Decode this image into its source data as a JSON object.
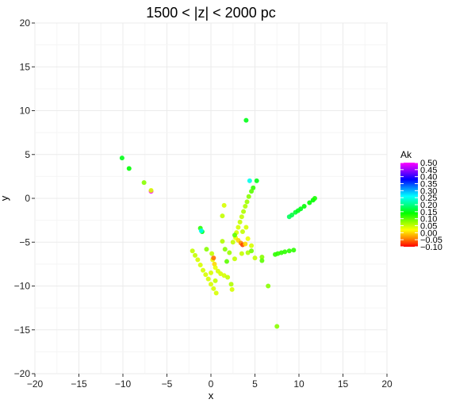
{
  "chart_data": {
    "type": "scatter",
    "title": "1500 < |z| < 2000 pc",
    "xlabel": "x",
    "ylabel": "y",
    "xlim": [
      -20,
      20
    ],
    "ylim": [
      -20,
      20
    ],
    "xticks": [
      -20,
      -15,
      -10,
      -5,
      0,
      5,
      10,
      15,
      20
    ],
    "yticks": [
      -20,
      -15,
      -10,
      -5,
      0,
      5,
      10,
      15,
      20
    ],
    "grid": true,
    "legend": {
      "title": "Ak",
      "placement": "right",
      "range": [
        -0.1,
        0.5
      ],
      "labels": [
        "0.50",
        "0.45",
        "0.40",
        "0.35",
        "0.30",
        "0.25",
        "0.20",
        "0.15",
        "0.10",
        "0.05",
        "0.00",
        "−0.05",
        "−0.10"
      ],
      "values": [
        0.5,
        0.45,
        0.4,
        0.35,
        0.3,
        0.25,
        0.2,
        0.15,
        0.1,
        0.05,
        0.0,
        -0.05,
        -0.1
      ]
    },
    "colormap": [
      "#ff0000",
      "#ff8800",
      "#ffff00",
      "#88ff00",
      "#00ff00",
      "#00ff88",
      "#00ffff",
      "#0088ff",
      "#0000ff",
      "#8800ff",
      "#ff00ff"
    ],
    "points": [
      {
        "x": -10.1,
        "y": 4.6,
        "ak": 0.15
      },
      {
        "x": -9.3,
        "y": 3.4,
        "ak": 0.14
      },
      {
        "x": -7.6,
        "y": 1.8,
        "ak": 0.08
      },
      {
        "x": -6.8,
        "y": 0.8,
        "ak": 0.5
      },
      {
        "x": -6.8,
        "y": 0.9,
        "ak": 0.04
      },
      {
        "x": 4.0,
        "y": 8.9,
        "ak": 0.15
      },
      {
        "x": 4.4,
        "y": 2.0,
        "ak": 0.25
      },
      {
        "x": 5.2,
        "y": 2.0,
        "ak": 0.15
      },
      {
        "x": 4.8,
        "y": 1.2,
        "ak": 0.12
      },
      {
        "x": 4.6,
        "y": 0.8,
        "ak": 0.1
      },
      {
        "x": 4.3,
        "y": 0.2,
        "ak": 0.08
      },
      {
        "x": 4.1,
        "y": -0.4,
        "ak": 0.07
      },
      {
        "x": 3.9,
        "y": -0.9,
        "ak": 0.06
      },
      {
        "x": 3.7,
        "y": -1.5,
        "ak": 0.06
      },
      {
        "x": 3.5,
        "y": -2.1,
        "ak": 0.05
      },
      {
        "x": 3.3,
        "y": -2.7,
        "ak": 0.05
      },
      {
        "x": 3.1,
        "y": -3.3,
        "ak": 0.04
      },
      {
        "x": 2.9,
        "y": -3.9,
        "ak": 0.04
      },
      {
        "x": 2.8,
        "y": -4.5,
        "ak": 0.03
      },
      {
        "x": 3.1,
        "y": -4.8,
        "ak": 0.0
      },
      {
        "x": 3.4,
        "y": -5.1,
        "ak": -0.04
      },
      {
        "x": 3.6,
        "y": -5.3,
        "ak": -0.07
      },
      {
        "x": 3.9,
        "y": -5.2,
        "ak": 0.0
      },
      {
        "x": 4.2,
        "y": -4.6,
        "ak": 0.03
      },
      {
        "x": 4.6,
        "y": -5.4,
        "ak": 0.04
      },
      {
        "x": 3.5,
        "y": -6.3,
        "ak": 0.05
      },
      {
        "x": 4.2,
        "y": -6.2,
        "ak": 0.06
      },
      {
        "x": 4.6,
        "y": -6.0,
        "ak": 0.09
      },
      {
        "x": 5.0,
        "y": -6.8,
        "ak": 0.05
      },
      {
        "x": 5.8,
        "y": -6.7,
        "ak": 0.08
      },
      {
        "x": 5.8,
        "y": -7.1,
        "ak": 0.1
      },
      {
        "x": 4.0,
        "y": -3.3,
        "ak": 0.04
      },
      {
        "x": 3.6,
        "y": -3.8,
        "ak": 0.05
      },
      {
        "x": 1.5,
        "y": -0.8,
        "ak": 0.04
      },
      {
        "x": 1.3,
        "y": -2.0,
        "ak": 0.05
      },
      {
        "x": 2.7,
        "y": -4.2,
        "ak": 0.1
      },
      {
        "x": 2.5,
        "y": -5.0,
        "ak": 0.05
      },
      {
        "x": 1.3,
        "y": -4.9,
        "ak": 0.06
      },
      {
        "x": 1.6,
        "y": -5.8,
        "ak": 0.08
      },
      {
        "x": 2.1,
        "y": -6.2,
        "ak": 0.07
      },
      {
        "x": 2.7,
        "y": -6.9,
        "ak": 0.05
      },
      {
        "x": 1.8,
        "y": -7.2,
        "ak": 0.1
      },
      {
        "x": -1.2,
        "y": -3.4,
        "ak": 0.12
      },
      {
        "x": -1.0,
        "y": -3.8,
        "ak": 0.14
      },
      {
        "x": -1.1,
        "y": -3.7,
        "ak": 0.25
      },
      {
        "x": 7.3,
        "y": -6.4,
        "ak": 0.12
      },
      {
        "x": 7.6,
        "y": -6.3,
        "ak": 0.12
      },
      {
        "x": 8.0,
        "y": -6.2,
        "ak": 0.12
      },
      {
        "x": 8.4,
        "y": -6.1,
        "ak": 0.12
      },
      {
        "x": 8.9,
        "y": -6.0,
        "ak": 0.12
      },
      {
        "x": 9.4,
        "y": -5.9,
        "ak": 0.12
      },
      {
        "x": 8.9,
        "y": -2.1,
        "ak": 0.18
      },
      {
        "x": 9.2,
        "y": -1.9,
        "ak": 0.17
      },
      {
        "x": 9.6,
        "y": -1.6,
        "ak": 0.16
      },
      {
        "x": 9.9,
        "y": -1.4,
        "ak": 0.15
      },
      {
        "x": 10.2,
        "y": -1.2,
        "ak": 0.15
      },
      {
        "x": 10.6,
        "y": -0.9,
        "ak": 0.14
      },
      {
        "x": 11.2,
        "y": -0.5,
        "ak": 0.14
      },
      {
        "x": 11.6,
        "y": -0.2,
        "ak": 0.14
      },
      {
        "x": 11.8,
        "y": 0.0,
        "ak": 0.13
      },
      {
        "x": 6.5,
        "y": -10.0,
        "ak": 0.08
      },
      {
        "x": 7.5,
        "y": -14.6,
        "ak": 0.08
      },
      {
        "x": -2.1,
        "y": -6.0,
        "ak": 0.05
      },
      {
        "x": -1.8,
        "y": -6.5,
        "ak": 0.05
      },
      {
        "x": -1.5,
        "y": -7.0,
        "ak": 0.04
      },
      {
        "x": -1.2,
        "y": -7.6,
        "ak": 0.04
      },
      {
        "x": -0.9,
        "y": -8.2,
        "ak": 0.04
      },
      {
        "x": -0.6,
        "y": -8.7,
        "ak": 0.04
      },
      {
        "x": -0.3,
        "y": -9.2,
        "ak": 0.04
      },
      {
        "x": 0.0,
        "y": -9.8,
        "ak": 0.04
      },
      {
        "x": 0.3,
        "y": -10.3,
        "ak": 0.04
      },
      {
        "x": 0.6,
        "y": -10.8,
        "ak": 0.04
      },
      {
        "x": -0.5,
        "y": -5.8,
        "ak": 0.08
      },
      {
        "x": 0.1,
        "y": -6.3,
        "ak": 0.05
      },
      {
        "x": 0.2,
        "y": -7.0,
        "ak": 0.03
      },
      {
        "x": 0.4,
        "y": -7.5,
        "ak": 0.0
      },
      {
        "x": 0.3,
        "y": -6.8,
        "ak": -0.05
      },
      {
        "x": 0.5,
        "y": -7.9,
        "ak": 0.03
      },
      {
        "x": 0.8,
        "y": -8.3,
        "ak": 0.04
      },
      {
        "x": 1.1,
        "y": -8.6,
        "ak": 0.04
      },
      {
        "x": 1.5,
        "y": -8.8,
        "ak": 0.04
      },
      {
        "x": 1.9,
        "y": -9.0,
        "ak": 0.05
      },
      {
        "x": 0.0,
        "y": -8.5,
        "ak": 0.04
      },
      {
        "x": 0.5,
        "y": -9.4,
        "ak": 0.05
      },
      {
        "x": 2.3,
        "y": -9.8,
        "ak": 0.06
      },
      {
        "x": 2.4,
        "y": -10.4,
        "ak": 0.04
      }
    ]
  }
}
